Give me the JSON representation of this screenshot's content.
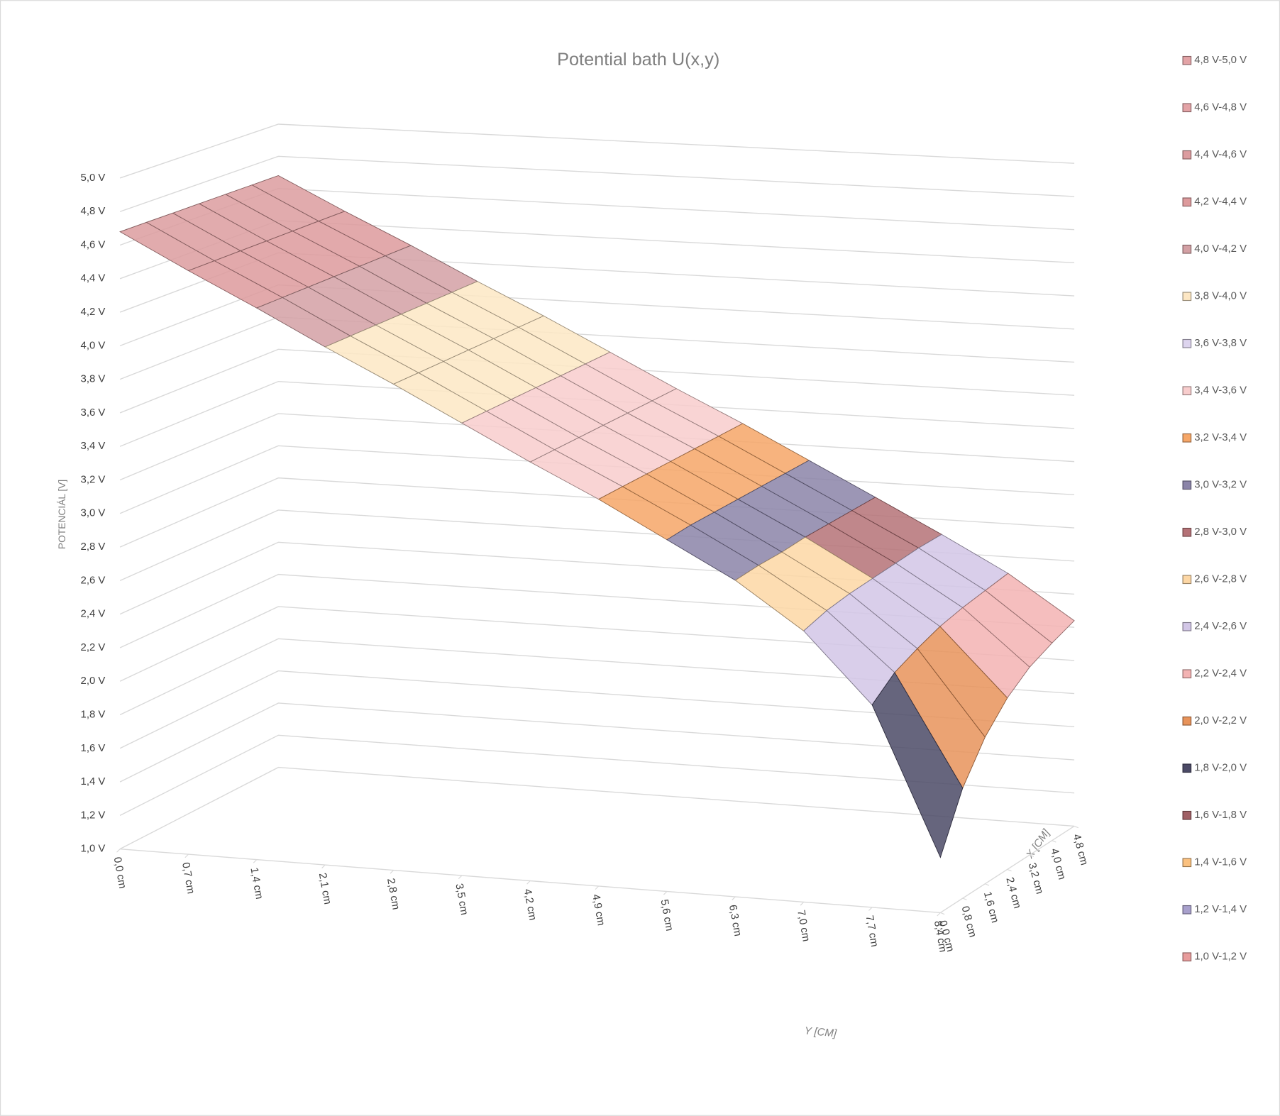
{
  "chart_data": {
    "type": "surface",
    "title": "Potential bath U(x,y)",
    "z_label": "POTENCIÁL [V]",
    "y_label": "Y [CM]",
    "x_label": "X [CM]",
    "x": [
      0,
      0.8,
      1.6,
      2.4,
      3.2,
      4.0,
      4.8
    ],
    "y": [
      0,
      0.7,
      1.4,
      2.1,
      2.8,
      3.5,
      4.2,
      4.9,
      5.6,
      6.3,
      7.0,
      7.7,
      8.4
    ],
    "values": [
      [
        4.68,
        4.48,
        4.29,
        4.09,
        3.9,
        3.7,
        3.5,
        3.31,
        3.1,
        2.89,
        2.62,
        2.21,
        1.33
      ],
      [
        4.68,
        4.48,
        4.29,
        4.09,
        3.9,
        3.7,
        3.5,
        3.31,
        3.11,
        2.9,
        2.66,
        2.32,
        1.66
      ],
      [
        4.68,
        4.48,
        4.29,
        4.09,
        3.9,
        3.7,
        3.5,
        3.31,
        3.11,
        2.9,
        2.68,
        2.38,
        1.88
      ],
      [
        4.68,
        4.48,
        4.29,
        4.09,
        3.9,
        3.7,
        3.5,
        3.31,
        3.11,
        2.91,
        2.69,
        2.43,
        2.03
      ],
      [
        4.68,
        4.48,
        4.29,
        4.09,
        3.9,
        3.7,
        3.5,
        3.31,
        3.11,
        2.91,
        2.7,
        2.46,
        2.13
      ],
      [
        4.68,
        4.48,
        4.29,
        4.09,
        3.9,
        3.7,
        3.5,
        3.31,
        3.11,
        2.91,
        2.71,
        2.48,
        2.19
      ],
      [
        4.68,
        4.48,
        4.29,
        4.09,
        3.9,
        3.7,
        3.5,
        3.31,
        3.11,
        2.91,
        2.71,
        2.5,
        2.24
      ]
    ],
    "xlim": [
      0,
      4.8
    ],
    "ylim": [
      0,
      8.4
    ],
    "zlim": [
      1,
      5
    ],
    "xticks": [
      {
        "value": 0,
        "label": "0,0 cm"
      },
      {
        "value": 0.8,
        "label": "0,8 cm"
      },
      {
        "value": 1.6,
        "label": "1,6 cm"
      },
      {
        "value": 2.4,
        "label": "2,4 cm"
      },
      {
        "value": 3.2,
        "label": "3,2 cm"
      },
      {
        "value": 4.0,
        "label": "4,0 cm"
      },
      {
        "value": 4.8,
        "label": "4,8 cm"
      }
    ],
    "yticks": [
      {
        "value": 0,
        "label": "0,0 cm"
      },
      {
        "value": 0.7,
        "label": "0,7 cm"
      },
      {
        "value": 1.4,
        "label": "1,4 cm"
      },
      {
        "value": 2.1,
        "label": "2,1 cm"
      },
      {
        "value": 2.8,
        "label": "2,8 cm"
      },
      {
        "value": 3.5,
        "label": "3,5 cm"
      },
      {
        "value": 4.2,
        "label": "4,2 cm"
      },
      {
        "value": 4.9,
        "label": "4,9 cm"
      },
      {
        "value": 5.6,
        "label": "5,6 cm"
      },
      {
        "value": 6.3,
        "label": "6,3 cm"
      },
      {
        "value": 7.0,
        "label": "7,0 cm"
      },
      {
        "value": 7.7,
        "label": "7,7 cm"
      },
      {
        "value": 8.4,
        "label": "8,4 cm"
      }
    ],
    "zticks": [
      {
        "value": 1.0,
        "label": "1,0 V"
      },
      {
        "value": 1.2,
        "label": "1,2 V"
      },
      {
        "value": 1.4,
        "label": "1,4 V"
      },
      {
        "value": 1.6,
        "label": "1,6 V"
      },
      {
        "value": 1.8,
        "label": "1,8 V"
      },
      {
        "value": 2.0,
        "label": "2,0 V"
      },
      {
        "value": 2.2,
        "label": "2,2 V"
      },
      {
        "value": 2.4,
        "label": "2,4 V"
      },
      {
        "value": 2.6,
        "label": "2,6 V"
      },
      {
        "value": 2.8,
        "label": "2,8 V"
      },
      {
        "value": 3.0,
        "label": "3,0 V"
      },
      {
        "value": 3.2,
        "label": "3,2 V"
      },
      {
        "value": 3.4,
        "label": "3,4 V"
      },
      {
        "value": 3.6,
        "label": "3,6 V"
      },
      {
        "value": 3.8,
        "label": "3,8 V"
      },
      {
        "value": 4.0,
        "label": "4,0 V"
      },
      {
        "value": 4.2,
        "label": "4,2 V"
      },
      {
        "value": 4.4,
        "label": "4,4 V"
      },
      {
        "value": 4.6,
        "label": "4,6 V"
      },
      {
        "value": 4.8,
        "label": "4,8 V"
      },
      {
        "value": 5.0,
        "label": "5,0 V"
      }
    ],
    "grid": true,
    "bands": [
      {
        "name": "4,8 V-5,0 V",
        "color": "#e3a3a6"
      },
      {
        "name": "4,6 V-4,8 V",
        "color": "#e3a3a6"
      },
      {
        "name": "4,4 V-4,6 V",
        "color": "#dc9c9f"
      },
      {
        "name": "4,2 V-4,4 V",
        "color": "#dd9a9c"
      },
      {
        "name": "4,0 V-4,2 V",
        "color": "#d3a0a4"
      },
      {
        "name": "3,8 V-4,0 V",
        "color": "#fde7c4"
      },
      {
        "name": "3,6 V-3,8 V",
        "color": "#ddd4ee"
      },
      {
        "name": "3,4 V-3,6 V",
        "color": "#f8cdcd"
      },
      {
        "name": "3,2 V-3,4 V",
        "color": "#f6a667"
      },
      {
        "name": "3,0 V-3,2 V",
        "color": "#8b84a8"
      },
      {
        "name": "2,8 V-3,0 V",
        "color": "#b57277"
      },
      {
        "name": "2,6 V-2,8 V",
        "color": "#fdd7a5"
      },
      {
        "name": "2,4 V-2,6 V",
        "color": "#d2c6e6"
      },
      {
        "name": "2,2 V-2,4 V",
        "color": "#f3b3b3"
      },
      {
        "name": "2,0 V-2,2 V",
        "color": "#e8935a"
      },
      {
        "name": "1,8 V-2,0 V",
        "color": "#4b4a66"
      },
      {
        "name": "1,6 V-1,8 V",
        "color": "#a06065"
      },
      {
        "name": "1,4 V-1,6 V",
        "color": "#fbc17f"
      },
      {
        "name": "1,2 V-1,4 V",
        "color": "#a8a0cc"
      },
      {
        "name": "1,0 V-1,2 V",
        "color": "#e89c9c"
      }
    ]
  }
}
